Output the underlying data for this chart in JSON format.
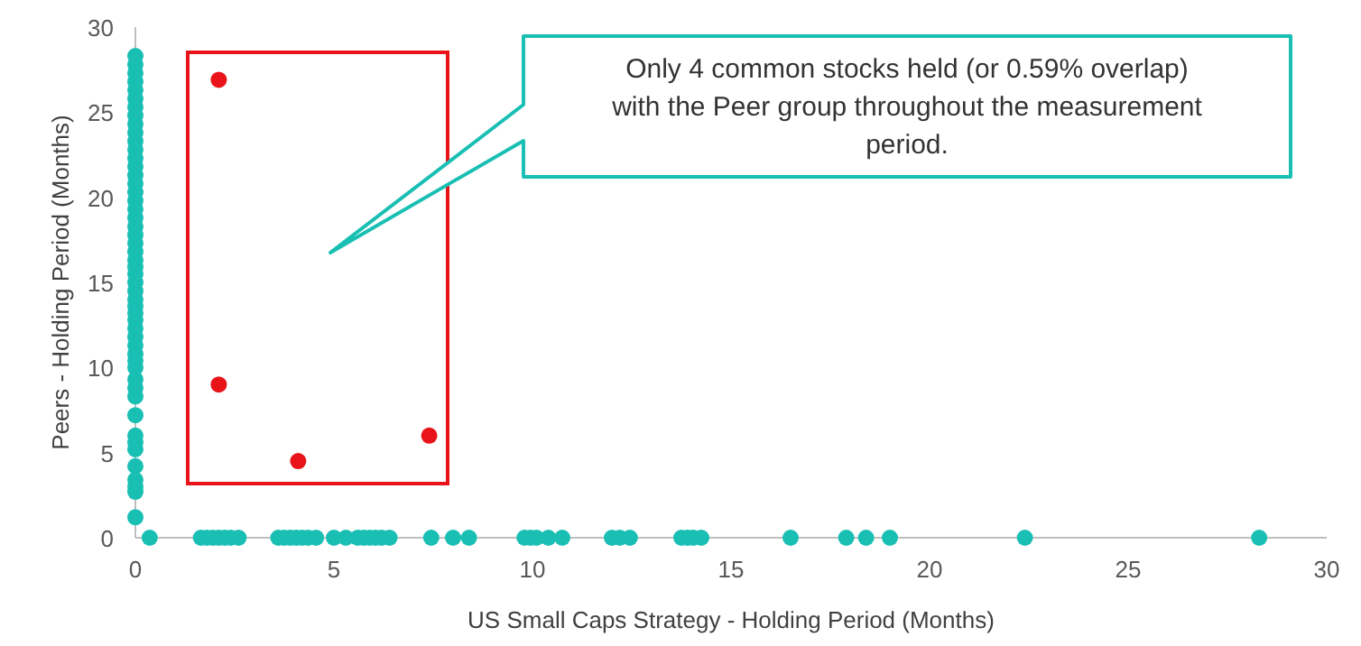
{
  "chart_data": {
    "type": "scatter",
    "xlabel": "US Small Caps Strategy - Holding Period (Months)",
    "ylabel": "Peers - Holding Period (Months)",
    "xlim": [
      0,
      30
    ],
    "ylim": [
      0,
      30
    ],
    "xticks": [
      0,
      5,
      10,
      15,
      20,
      25,
      30
    ],
    "yticks": [
      0,
      5,
      10,
      15,
      20,
      25,
      30
    ],
    "grid": false,
    "marker": "circle",
    "series": [
      {
        "color": "#1abfb4",
        "x": [
          0,
          0,
          0,
          0,
          0,
          0,
          0,
          0,
          0,
          0,
          0,
          0,
          0,
          0,
          0,
          0,
          0,
          0,
          0,
          0,
          0,
          0,
          0,
          0,
          0,
          0,
          0,
          0,
          0,
          0,
          0,
          0,
          0,
          0,
          0,
          0,
          0,
          0,
          0,
          0,
          0,
          0,
          0,
          0,
          0,
          0,
          0,
          0,
          0,
          0,
          0,
          0.36,
          1.65,
          1.8,
          1.95,
          2.1,
          2.25,
          2.4,
          2.6,
          3.6,
          3.75,
          3.9,
          4.05,
          4.2,
          4.35,
          4.55,
          5.0,
          5.3,
          5.6,
          5.75,
          5.9,
          6.05,
          6.2,
          6.4,
          7.45,
          8.0,
          8.4,
          9.8,
          9.95,
          10.1,
          10.4,
          10.75,
          12.0,
          12.2,
          12.45,
          13.75,
          13.9,
          14.05,
          14.25,
          16.5,
          17.9,
          18.4,
          19.0,
          22.4,
          28.3
        ],
        "values": [
          1.2,
          2.7,
          3.0,
          3.4,
          4.2,
          5.2,
          5.6,
          6.0,
          7.2,
          8.3,
          8.8,
          9.3,
          10.0,
          10.4,
          10.8,
          11.3,
          11.8,
          12.3,
          12.8,
          13.2,
          13.6,
          14.0,
          14.5,
          15.0,
          15.5,
          15.9,
          16.3,
          16.8,
          17.3,
          17.8,
          18.3,
          18.8,
          19.3,
          19.8,
          20.3,
          20.8,
          21.3,
          21.8,
          22.3,
          22.8,
          23.3,
          23.8,
          24.3,
          24.8,
          25.3,
          25.8,
          26.3,
          26.8,
          27.3,
          27.8,
          28.3,
          0,
          0,
          0,
          0,
          0,
          0,
          0,
          0,
          0,
          0,
          0,
          0,
          0,
          0,
          0,
          0,
          0,
          0,
          0,
          0,
          0,
          0,
          0,
          0,
          0,
          0,
          0,
          0,
          0,
          0,
          0,
          0,
          0,
          0,
          0,
          0,
          0,
          0,
          0,
          0,
          0,
          0,
          0,
          0
        ]
      },
      {
        "color": "#e8141a",
        "x": [
          2.1,
          2.1,
          4.1,
          7.4
        ],
        "values": [
          26.9,
          9.0,
          4.5,
          6.0
        ]
      }
    ],
    "annotations": [
      "Only 4 common stocks held (or 0.59% overlap) with the Peer group throughout the measurement period."
    ]
  }
}
